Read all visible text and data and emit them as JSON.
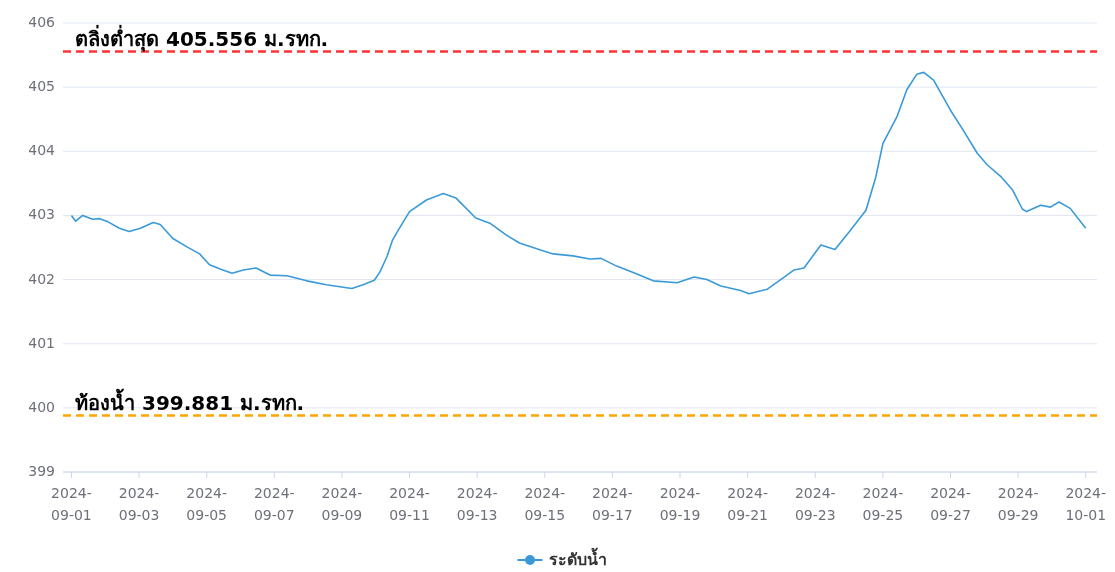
{
  "chart_data": {
    "type": "line",
    "x": [
      "2024-09-01T00:00",
      "2024-09-01T03:00",
      "2024-09-01T08:00",
      "2024-09-01T15:00",
      "2024-09-01T20:00",
      "2024-09-02T02:00",
      "2024-09-02T10:00",
      "2024-09-02T17:00",
      "2024-09-03T01:00",
      "2024-09-03T10:00",
      "2024-09-03T15:00",
      "2024-09-04T00:00",
      "2024-09-04T10:00",
      "2024-09-04T19:00",
      "2024-09-05T02:00",
      "2024-09-05T10:00",
      "2024-09-05T18:00",
      "2024-09-06T02:00",
      "2024-09-06T11:00",
      "2024-09-06T21:00",
      "2024-09-07T09:00",
      "2024-09-07T23:00",
      "2024-09-08T13:00",
      "2024-09-09T07:00",
      "2024-09-09T15:00",
      "2024-09-09T23:00",
      "2024-09-10T03:00",
      "2024-09-10T08:00",
      "2024-09-10T12:00",
      "2024-09-10T16:00",
      "2024-09-11T00:00",
      "2024-09-11T12:00",
      "2024-09-12T00:00",
      "2024-09-12T09:00",
      "2024-09-12T23:00",
      "2024-09-13T09:00",
      "2024-09-13T21:00",
      "2024-09-14T06:00",
      "2024-09-14T21:00",
      "2024-09-15T06:00",
      "2024-09-15T20:00",
      "2024-09-16T08:00",
      "2024-09-16T16:00",
      "2024-09-17T03:00",
      "2024-09-17T17:00",
      "2024-09-18T05:00",
      "2024-09-18T22:00",
      "2024-09-19T10:00",
      "2024-09-19T19:00",
      "2024-09-20T05:00",
      "2024-09-20T19:00",
      "2024-09-21T01:00",
      "2024-09-21T14:00",
      "2024-09-21T23:00",
      "2024-09-22T09:00",
      "2024-09-22T16:00",
      "2024-09-23T04:00",
      "2024-09-23T14:00",
      "2024-09-24T01:00",
      "2024-09-24T12:00",
      "2024-09-24T19:00",
      "2024-09-25T00:00",
      "2024-09-25T10:00",
      "2024-09-25T17:00",
      "2024-09-26T00:00",
      "2024-09-26T05:00",
      "2024-09-26T12:00",
      "2024-09-27T00:00",
      "2024-09-27T09:00",
      "2024-09-27T19:00",
      "2024-09-28T02:00",
      "2024-09-28T12:00",
      "2024-09-28T20:00",
      "2024-09-29T03:00",
      "2024-09-29T06:00",
      "2024-09-29T16:00",
      "2024-09-29T23:00",
      "2024-09-30T05:00",
      "2024-09-30T13:00",
      "2024-10-01T00:00"
    ],
    "series": [
      {
        "name": "ระดับน้ำ",
        "color": "#3a9ad9",
        "values": [
          403.0,
          402.91,
          403.0,
          402.94,
          402.95,
          402.9,
          402.8,
          402.75,
          402.8,
          402.89,
          402.86,
          402.64,
          402.51,
          402.4,
          402.23,
          402.16,
          402.1,
          402.15,
          402.18,
          402.07,
          402.06,
          401.98,
          401.92,
          401.86,
          401.92,
          401.99,
          402.12,
          402.36,
          402.62,
          402.77,
          403.06,
          403.24,
          403.34,
          403.27,
          402.96,
          402.88,
          402.69,
          402.57,
          402.46,
          402.4,
          402.37,
          402.32,
          402.33,
          402.21,
          402.09,
          401.98,
          401.95,
          402.04,
          402.0,
          401.9,
          401.83,
          401.78,
          401.85,
          401.99,
          402.15,
          402.18,
          402.54,
          402.47,
          402.77,
          403.08,
          403.6,
          404.12,
          404.54,
          404.96,
          405.2,
          405.23,
          405.11,
          404.64,
          404.33,
          403.97,
          403.79,
          403.6,
          403.4,
          403.1,
          403.06,
          403.16,
          403.13,
          403.21,
          403.11,
          402.8
        ]
      }
    ],
    "xlim": [
      "2024-08-31T18:00",
      "2024-10-01T08:00"
    ],
    "xticks": [
      {
        "value": "2024-09-01",
        "label": "2024-09-01"
      },
      {
        "value": "2024-09-03",
        "label": "2024-09-03"
      },
      {
        "value": "2024-09-05",
        "label": "2024-09-05"
      },
      {
        "value": "2024-09-07",
        "label": "2024-09-07"
      },
      {
        "value": "2024-09-09",
        "label": "2024-09-09"
      },
      {
        "value": "2024-09-11",
        "label": "2024-09-11"
      },
      {
        "value": "2024-09-13",
        "label": "2024-09-13"
      },
      {
        "value": "2024-09-15",
        "label": "2024-09-15"
      },
      {
        "value": "2024-09-17",
        "label": "2024-09-17"
      },
      {
        "value": "2024-09-19",
        "label": "2024-09-19"
      },
      {
        "value": "2024-09-21",
        "label": "2024-09-21"
      },
      {
        "value": "2024-09-23",
        "label": "2024-09-23"
      },
      {
        "value": "2024-09-25",
        "label": "2024-09-25"
      },
      {
        "value": "2024-09-27",
        "label": "2024-09-27"
      },
      {
        "value": "2024-09-29",
        "label": "2024-09-29"
      },
      {
        "value": "2024-10-01",
        "label": "2024-10-01"
      }
    ],
    "ylim": [
      399,
      406
    ],
    "yticks": [
      399,
      400,
      401,
      402,
      403,
      404,
      405,
      406
    ],
    "ref_lines": [
      {
        "axis": "y",
        "value": 405.556,
        "label": "ตลิ่งต่ำสุด 405.556 ม.รทก.",
        "color": "#ff3333",
        "line_style": "dashed"
      },
      {
        "axis": "y",
        "value": 399.881,
        "label": "ท้องน้ำ 399.881 ม.รทก.",
        "color": "#ffa500",
        "line_style": "dashed"
      }
    ],
    "grid": "y",
    "legend": "bottom"
  }
}
